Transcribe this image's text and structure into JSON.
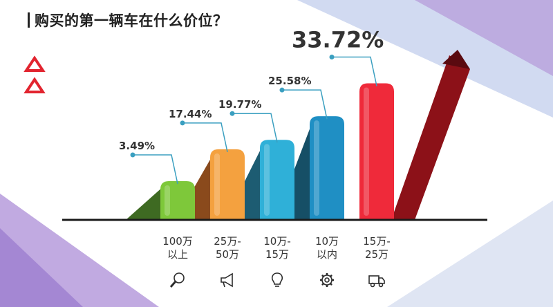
{
  "title": "购买的第一辆车在什么价位？",
  "colors": {
    "background": "#ffffff",
    "baseline": "#1a1a1a",
    "annotation": "#3a9fc0",
    "triangle": "#e2242f",
    "bg_band_light": "#cfd8ee",
    "bg_band_purple": "#a97fd0"
  },
  "chart_data": {
    "type": "bar",
    "title": "购买的第一辆车在什么价位？",
    "categories": [
      {
        "line1": "100万",
        "line2": "以上",
        "icon": "magnifier-icon"
      },
      {
        "line1": "25万-",
        "line2": "50万",
        "icon": "megaphone-icon"
      },
      {
        "line1": "10万-",
        "line2": "15万",
        "icon": "lightbulb-icon"
      },
      {
        "line1": "10万",
        "line2": "以内",
        "icon": "gear-icon"
      },
      {
        "line1": "15万-",
        "line2": "25万",
        "icon": "truck-icon"
      }
    ],
    "values": [
      3.49,
      17.44,
      19.77,
      25.58,
      33.72
    ],
    "value_labels": [
      "3.49%",
      "17.44%",
      "19.77%",
      "25.58%",
      "33.72%"
    ],
    "bar_colors": [
      "#7ec83a",
      "#f4a13f",
      "#2fb0d8",
      "#1f8fc4",
      "#ef2a3a"
    ],
    "shadow_colors": [
      "#3e6a22",
      "#8a4a1c",
      "#1d5c72",
      "#164f66",
      "#8c1118"
    ],
    "unit": "%",
    "ylim": [
      0,
      35
    ],
    "grid": false,
    "legend": "none"
  }
}
